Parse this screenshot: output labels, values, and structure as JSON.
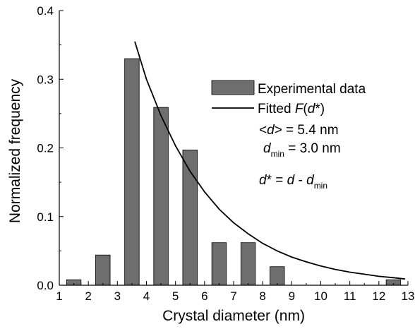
{
  "chart_data": {
    "type": "bar",
    "x": [
      1.5,
      2.5,
      3.5,
      4.5,
      5.5,
      6.5,
      7.5,
      8.5,
      12.5
    ],
    "values": [
      0.008,
      0.044,
      0.33,
      0.259,
      0.197,
      0.062,
      0.062,
      0.027,
      0.008
    ],
    "bar_color": "#6e6e6e",
    "series": [
      {
        "name": "Experimental data",
        "type": "bar"
      },
      {
        "name": "Fitted F(d*)",
        "type": "line",
        "color": "#000000",
        "x": [
          3.6,
          4,
          4.5,
          5,
          5.5,
          6,
          6.5,
          7,
          7.5,
          8,
          8.5,
          9,
          9.5,
          10,
          10.5,
          11,
          11.5,
          12,
          12.5,
          12.9
        ],
        "y": [
          0.355,
          0.3,
          0.247,
          0.203,
          0.166,
          0.136,
          0.111,
          0.091,
          0.075,
          0.061,
          0.05,
          0.041,
          0.034,
          0.028,
          0.023,
          0.019,
          0.016,
          0.013,
          0.011,
          0.009
        ]
      }
    ],
    "xlabel": "Crystal diameter (nm)",
    "ylabel": "Normalized frequency",
    "xlim": [
      1,
      13
    ],
    "ylim": [
      0,
      0.4
    ],
    "xticks": [
      "1",
      "2",
      "3",
      "4",
      "5",
      "6",
      "7",
      "8",
      "9",
      "10",
      "11",
      "12",
      "13"
    ],
    "yticks": [
      "0.0",
      "0.1",
      "0.2",
      "0.3",
      "0.4"
    ],
    "grid": false,
    "legend_position": "top-right",
    "annotations": {
      "mean": {
        "prefix": "<",
        "var": "d",
        "suffix": "> = 5.4 nm"
      },
      "dmin": {
        "var": "d",
        "sub": "min",
        "value": " = 3.0 nm"
      },
      "dstar": {
        "lhs": "d",
        "star_eq": "* = ",
        "var": "d",
        "minus": " - ",
        "rhs": "d",
        "sub": "min"
      }
    },
    "legend": {
      "bar_label": "Experimental data",
      "line_prefix": "Fitted ",
      "line_func": "F",
      "line_open": "(",
      "line_var": "d",
      "line_close": "*)"
    }
  }
}
